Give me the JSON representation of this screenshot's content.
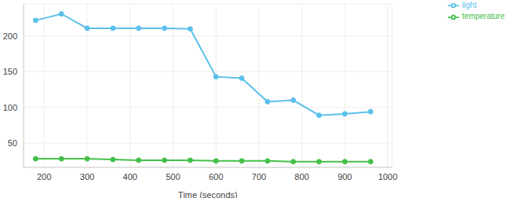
{
  "chart_data": {
    "type": "line",
    "xlabel": "Time (seconds)",
    "x": [
      180,
      240,
      300,
      360,
      420,
      480,
      540,
      600,
      660,
      720,
      780,
      840,
      900,
      960
    ],
    "series": [
      {
        "name": "temperature",
        "color": "#44c04a",
        "marker": "circle",
        "values": [
          28,
          28,
          28,
          27,
          26,
          26,
          26,
          25,
          25,
          25,
          24,
          24,
          24,
          24
        ]
      },
      {
        "name": "light",
        "color": "#5bc0eb",
        "marker": "circle",
        "values": [
          222,
          231,
          211,
          211,
          211,
          211,
          210,
          143,
          141,
          108,
          110,
          89,
          91,
          94
        ]
      }
    ],
    "xlim": [
      152,
      1010
    ],
    "xticks": [
      200,
      300,
      400,
      500,
      600,
      700,
      800,
      900,
      1000
    ],
    "ylim": [
      16,
      245
    ],
    "yticks": [
      50,
      100,
      150,
      200
    ],
    "grid": true,
    "legend": "top-right"
  }
}
